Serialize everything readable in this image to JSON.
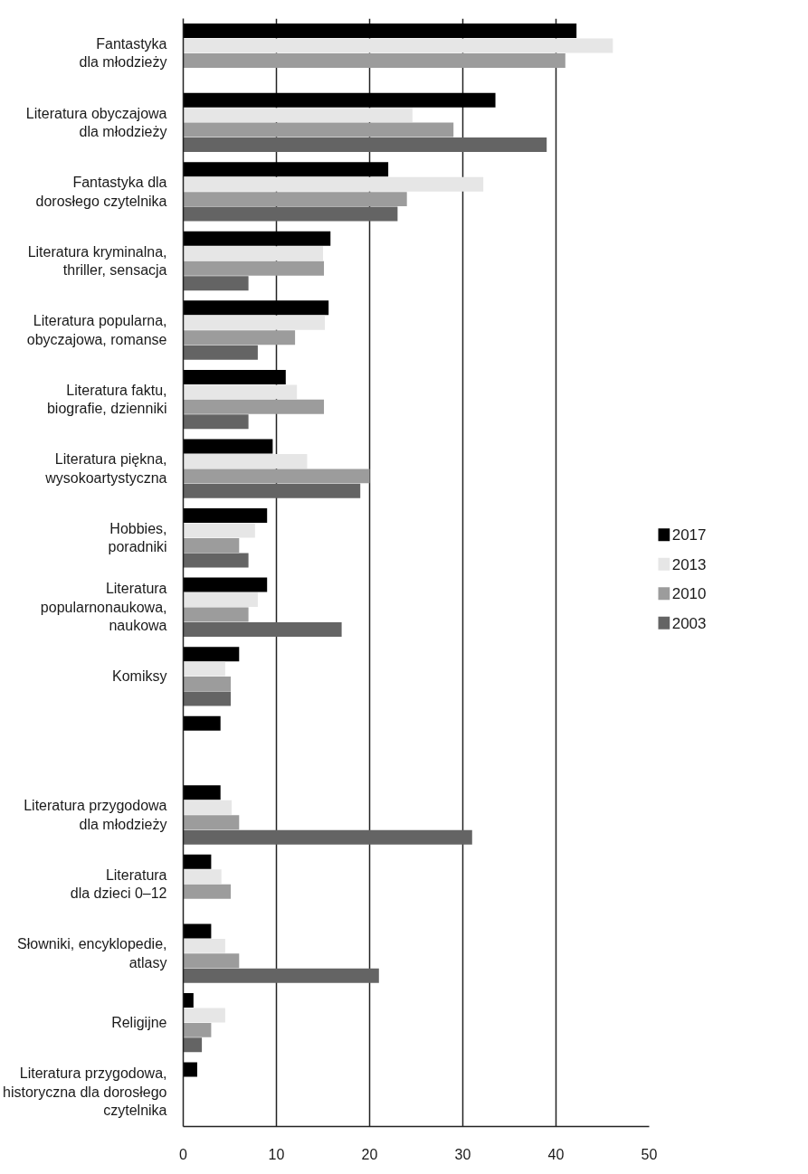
{
  "chart_data": {
    "type": "bar",
    "orientation": "horizontal",
    "categories": [
      "Fantastyka\ndla młodzieży",
      "Literatura obyczajowa\ndla młodzieży",
      "Fantastyka dla\ndorosłego czytelnika",
      "Literatura kryminalna,\nthriller, sensacja",
      "Literatura popularna,\nobyczajowa, romanse",
      "Literatura faktu,\nbiografie, dzienniki",
      "Literatura piękna,\nwysokoartystyczna",
      "Hobbies,\nporadniki",
      "Literatura\npopularnonaukowa,\nnaukowa",
      "Komiksy",
      null,
      "Literatura przygodowa\ndla młodzieży",
      "Literatura\ndla dzieci 0–12",
      "Słowniki, encyklopedie,\natlasy",
      "Religijne",
      "Literatura przygodowa,\nhistoryczna dla dorosłego\nczytelnika"
    ],
    "series": [
      {
        "name": "2017",
        "color": "#000000",
        "values": [
          42.2,
          33.5,
          22.0,
          15.8,
          15.6,
          11.0,
          9.6,
          9.0,
          9.0,
          6.0,
          4.0,
          4.0,
          3.0,
          3.0,
          1.1,
          1.5
        ]
      },
      {
        "name": "2013",
        "color": "#e6e6e6",
        "values": [
          46.1,
          24.6,
          32.2,
          15.0,
          15.2,
          12.2,
          13.3,
          7.7,
          8.0,
          4.5,
          null,
          5.2,
          4.1,
          4.5,
          4.5,
          null
        ]
      },
      {
        "name": "2010",
        "color": "#9c9c9c",
        "values": [
          41.0,
          29.0,
          24.0,
          15.1,
          12.0,
          15.1,
          20.0,
          6.0,
          7.0,
          5.1,
          null,
          6.0,
          5.1,
          6.0,
          3.0,
          null
        ]
      },
      {
        "name": "2003",
        "color": "#646464",
        "values": [
          null,
          39.0,
          23.0,
          7.0,
          8.0,
          7.0,
          19.0,
          7.0,
          17.0,
          5.1,
          null,
          31.0,
          null,
          21.0,
          2.0,
          null
        ]
      }
    ],
    "xlim": [
      0,
      50
    ],
    "xticks": [
      0,
      10,
      20,
      30,
      40,
      50
    ],
    "grid": "x",
    "legend": "right"
  }
}
